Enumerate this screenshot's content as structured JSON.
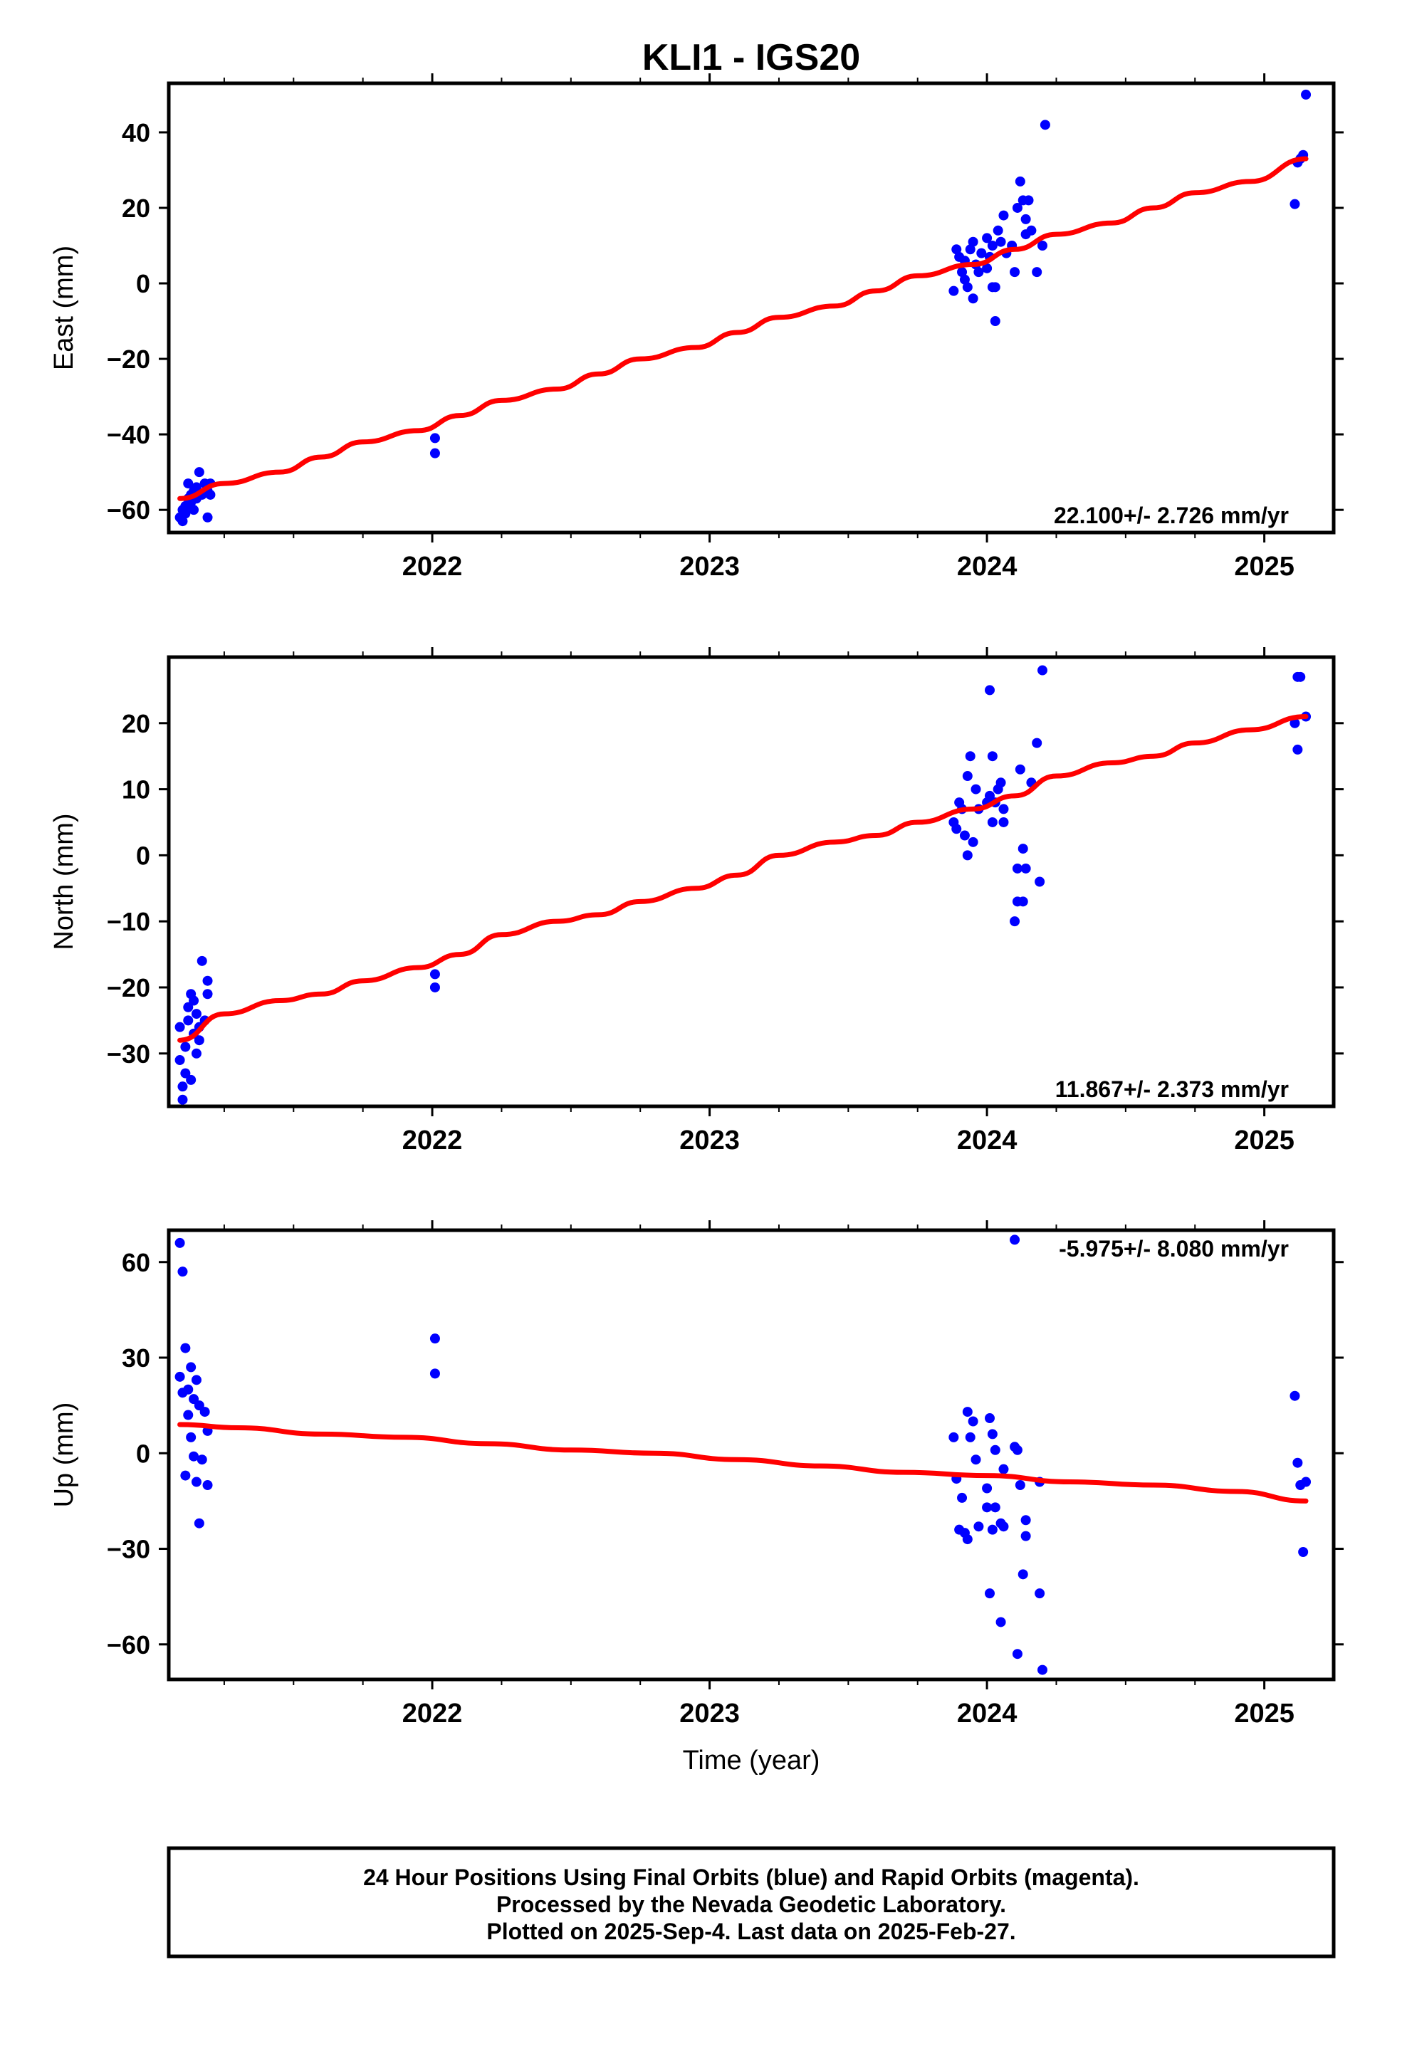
{
  "title": "KLI1 - IGS20",
  "xlabel": "Time (year)",
  "footer": {
    "lines": [
      "24 Hour Positions Using Final Orbits (blue) and Rapid Orbits (magenta).",
      "Processed by the Nevada Geodetic Laboratory.",
      "Plotted on 2025-Sep-4. Last data on 2025-Feb-27."
    ]
  },
  "colors": {
    "data": "#0000ff",
    "model": "#ff0000",
    "frame": "#000000"
  },
  "chart_data": [
    {
      "type": "scatter",
      "component": "east",
      "ylabel": "East (mm)",
      "rate_text": "22.100+/- 2.726 mm/yr",
      "xlim": [
        2021.05,
        2025.25
      ],
      "ylim": [
        -66,
        53
      ],
      "yticks": [
        40,
        20,
        0,
        -20,
        -40,
        -60
      ],
      "xticks": [
        2022,
        2023,
        2024,
        2025
      ],
      "grid": false,
      "points": [
        [
          2021.09,
          -62
        ],
        [
          2021.1,
          -63
        ],
        [
          2021.1,
          -60
        ],
        [
          2021.11,
          -59
        ],
        [
          2021.11,
          -61
        ],
        [
          2021.12,
          -53
        ],
        [
          2021.12,
          -57
        ],
        [
          2021.13,
          -58
        ],
        [
          2021.13,
          -56
        ],
        [
          2021.14,
          -55
        ],
        [
          2021.14,
          -60
        ],
        [
          2021.15,
          -54
        ],
        [
          2021.15,
          -57
        ],
        [
          2021.16,
          -50
        ],
        [
          2021.17,
          -56
        ],
        [
          2021.18,
          -53
        ],
        [
          2021.19,
          -55
        ],
        [
          2021.19,
          -62
        ],
        [
          2021.2,
          -53
        ],
        [
          2021.2,
          -56
        ],
        [
          2022.01,
          -41
        ],
        [
          2022.01,
          -45
        ],
        [
          2023.88,
          -2
        ],
        [
          2023.89,
          9
        ],
        [
          2023.9,
          7
        ],
        [
          2023.91,
          3
        ],
        [
          2023.92,
          6
        ],
        [
          2023.92,
          1
        ],
        [
          2023.93,
          -1
        ],
        [
          2023.94,
          9
        ],
        [
          2023.95,
          -4
        ],
        [
          2023.95,
          11
        ],
        [
          2023.96,
          5
        ],
        [
          2023.97,
          3
        ],
        [
          2023.98,
          8
        ],
        [
          2024.0,
          4
        ],
        [
          2024.0,
          12
        ],
        [
          2024.01,
          7
        ],
        [
          2024.02,
          -1
        ],
        [
          2024.02,
          10
        ],
        [
          2024.03,
          -10
        ],
        [
          2024.03,
          -1
        ],
        [
          2024.04,
          14
        ],
        [
          2024.05,
          11
        ],
        [
          2024.06,
          18
        ],
        [
          2024.07,
          8
        ],
        [
          2024.09,
          10
        ],
        [
          2024.1,
          3
        ],
        [
          2024.11,
          20
        ],
        [
          2024.12,
          27
        ],
        [
          2024.13,
          22
        ],
        [
          2024.14,
          17
        ],
        [
          2024.14,
          13
        ],
        [
          2024.15,
          22
        ],
        [
          2024.16,
          14
        ],
        [
          2024.18,
          3
        ],
        [
          2024.2,
          10
        ],
        [
          2024.21,
          42
        ],
        [
          2025.11,
          21
        ],
        [
          2025.12,
          32
        ],
        [
          2025.13,
          33
        ],
        [
          2025.14,
          34
        ],
        [
          2025.15,
          50
        ]
      ],
      "model": [
        [
          2021.09,
          -57
        ],
        [
          2021.25,
          -53
        ],
        [
          2021.45,
          -50
        ],
        [
          2021.6,
          -46
        ],
        [
          2021.75,
          -42
        ],
        [
          2021.95,
          -39
        ],
        [
          2022.1,
          -35
        ],
        [
          2022.25,
          -31
        ],
        [
          2022.45,
          -28
        ],
        [
          2022.6,
          -24
        ],
        [
          2022.75,
          -20
        ],
        [
          2022.95,
          -17
        ],
        [
          2023.1,
          -13
        ],
        [
          2023.25,
          -9
        ],
        [
          2023.45,
          -6
        ],
        [
          2023.6,
          -2
        ],
        [
          2023.75,
          2
        ],
        [
          2023.95,
          5
        ],
        [
          2024.1,
          9
        ],
        [
          2024.25,
          13
        ],
        [
          2024.45,
          16
        ],
        [
          2024.6,
          20
        ],
        [
          2024.75,
          24
        ],
        [
          2024.95,
          27
        ],
        [
          2025.15,
          33
        ]
      ]
    },
    {
      "type": "scatter",
      "component": "north",
      "ylabel": "North (mm)",
      "rate_text": "11.867+/- 2.373 mm/yr",
      "xlim": [
        2021.05,
        2025.25
      ],
      "ylim": [
        -38,
        30
      ],
      "yticks": [
        20,
        10,
        0,
        -10,
        -20,
        -30
      ],
      "xticks": [
        2022,
        2023,
        2024,
        2025
      ],
      "grid": false,
      "points": [
        [
          2021.09,
          -26
        ],
        [
          2021.09,
          -31
        ],
        [
          2021.1,
          -35
        ],
        [
          2021.1,
          -37
        ],
        [
          2021.11,
          -33
        ],
        [
          2021.11,
          -29
        ],
        [
          2021.12,
          -25
        ],
        [
          2021.12,
          -23
        ],
        [
          2021.13,
          -34
        ],
        [
          2021.13,
          -21
        ],
        [
          2021.14,
          -27
        ],
        [
          2021.14,
          -22
        ],
        [
          2021.15,
          -24
        ],
        [
          2021.15,
          -30
        ],
        [
          2021.16,
          -26
        ],
        [
          2021.16,
          -28
        ],
        [
          2021.17,
          -16
        ],
        [
          2021.18,
          -25
        ],
        [
          2021.19,
          -19
        ],
        [
          2021.19,
          -21
        ],
        [
          2022.01,
          -18
        ],
        [
          2022.01,
          -20
        ],
        [
          2023.88,
          5
        ],
        [
          2023.89,
          4
        ],
        [
          2023.9,
          8
        ],
        [
          2023.91,
          7
        ],
        [
          2023.92,
          3
        ],
        [
          2023.93,
          12
        ],
        [
          2023.93,
          0
        ],
        [
          2023.94,
          15
        ],
        [
          2023.95,
          2
        ],
        [
          2023.96,
          10
        ],
        [
          2023.97,
          7
        ],
        [
          2024.0,
          8
        ],
        [
          2024.01,
          25
        ],
        [
          2024.01,
          9
        ],
        [
          2024.02,
          5
        ],
        [
          2024.02,
          15
        ],
        [
          2024.03,
          8
        ],
        [
          2024.04,
          10
        ],
        [
          2024.05,
          11
        ],
        [
          2024.06,
          5
        ],
        [
          2024.06,
          7
        ],
        [
          2024.1,
          -10
        ],
        [
          2024.11,
          -2
        ],
        [
          2024.11,
          -7
        ],
        [
          2024.12,
          13
        ],
        [
          2024.13,
          1
        ],
        [
          2024.13,
          -7
        ],
        [
          2024.14,
          -2
        ],
        [
          2024.16,
          11
        ],
        [
          2024.18,
          17
        ],
        [
          2024.19,
          -4
        ],
        [
          2024.2,
          28
        ],
        [
          2025.11,
          20
        ],
        [
          2025.12,
          27
        ],
        [
          2025.12,
          16
        ],
        [
          2025.13,
          27
        ],
        [
          2025.15,
          21
        ]
      ],
      "model": [
        [
          2021.09,
          -28
        ],
        [
          2021.25,
          -24
        ],
        [
          2021.45,
          -22
        ],
        [
          2021.6,
          -21
        ],
        [
          2021.75,
          -19
        ],
        [
          2021.95,
          -17
        ],
        [
          2022.1,
          -15
        ],
        [
          2022.25,
          -12
        ],
        [
          2022.45,
          -10
        ],
        [
          2022.6,
          -9
        ],
        [
          2022.75,
          -7
        ],
        [
          2022.95,
          -5
        ],
        [
          2023.1,
          -3
        ],
        [
          2023.25,
          0
        ],
        [
          2023.45,
          2
        ],
        [
          2023.6,
          3
        ],
        [
          2023.75,
          5
        ],
        [
          2023.95,
          7
        ],
        [
          2024.1,
          9
        ],
        [
          2024.25,
          12
        ],
        [
          2024.45,
          14
        ],
        [
          2024.6,
          15
        ],
        [
          2024.75,
          17
        ],
        [
          2024.95,
          19
        ],
        [
          2025.15,
          21
        ]
      ]
    },
    {
      "type": "scatter",
      "component": "up",
      "ylabel": "Up (mm)",
      "rate_text": "-5.975+/- 8.080 mm/yr",
      "xlim": [
        2021.05,
        2025.25
      ],
      "ylim": [
        -71,
        70
      ],
      "yticks": [
        60,
        30,
        0,
        -30,
        -60
      ],
      "xticks": [
        2022,
        2023,
        2024,
        2025
      ],
      "grid": false,
      "points": [
        [
          2021.09,
          66
        ],
        [
          2021.09,
          24
        ],
        [
          2021.1,
          19
        ],
        [
          2021.1,
          57
        ],
        [
          2021.11,
          33
        ],
        [
          2021.11,
          -7
        ],
        [
          2021.12,
          12
        ],
        [
          2021.12,
          20
        ],
        [
          2021.13,
          5
        ],
        [
          2021.13,
          27
        ],
        [
          2021.14,
          17
        ],
        [
          2021.14,
          -1
        ],
        [
          2021.15,
          23
        ],
        [
          2021.15,
          -9
        ],
        [
          2021.16,
          15
        ],
        [
          2021.16,
          -22
        ],
        [
          2021.17,
          -2
        ],
        [
          2021.18,
          13
        ],
        [
          2021.19,
          -10
        ],
        [
          2021.19,
          7
        ],
        [
          2022.01,
          36
        ],
        [
          2022.01,
          25
        ],
        [
          2023.88,
          5
        ],
        [
          2023.89,
          -8
        ],
        [
          2023.9,
          -24
        ],
        [
          2023.91,
          -14
        ],
        [
          2023.92,
          -25
        ],
        [
          2023.93,
          13
        ],
        [
          2023.93,
          -27
        ],
        [
          2023.94,
          5
        ],
        [
          2023.95,
          10
        ],
        [
          2023.96,
          -2
        ],
        [
          2023.97,
          -23
        ],
        [
          2024.0,
          -17
        ],
        [
          2024.0,
          -11
        ],
        [
          2024.01,
          -44
        ],
        [
          2024.01,
          11
        ],
        [
          2024.02,
          6
        ],
        [
          2024.02,
          -24
        ],
        [
          2024.03,
          -17
        ],
        [
          2024.03,
          1
        ],
        [
          2024.05,
          -53
        ],
        [
          2024.05,
          -22
        ],
        [
          2024.06,
          -5
        ],
        [
          2024.06,
          -23
        ],
        [
          2024.1,
          67
        ],
        [
          2024.1,
          2
        ],
        [
          2024.11,
          1
        ],
        [
          2024.11,
          -63
        ],
        [
          2024.12,
          -10
        ],
        [
          2024.13,
          -38
        ],
        [
          2024.14,
          -26
        ],
        [
          2024.14,
          -21
        ],
        [
          2024.19,
          -9
        ],
        [
          2024.19,
          -44
        ],
        [
          2024.2,
          -68
        ],
        [
          2025.11,
          18
        ],
        [
          2025.12,
          -3
        ],
        [
          2025.13,
          -10
        ],
        [
          2025.14,
          -31
        ],
        [
          2025.15,
          -9
        ]
      ],
      "model": [
        [
          2021.09,
          9
        ],
        [
          2021.3,
          8
        ],
        [
          2021.6,
          6
        ],
        [
          2021.9,
          5
        ],
        [
          2022.2,
          3
        ],
        [
          2022.5,
          1
        ],
        [
          2022.8,
          0
        ],
        [
          2023.1,
          -2
        ],
        [
          2023.4,
          -4
        ],
        [
          2023.7,
          -6
        ],
        [
          2024.0,
          -7
        ],
        [
          2024.3,
          -9
        ],
        [
          2024.6,
          -10
        ],
        [
          2024.9,
          -12
        ],
        [
          2025.15,
          -15
        ]
      ]
    }
  ]
}
